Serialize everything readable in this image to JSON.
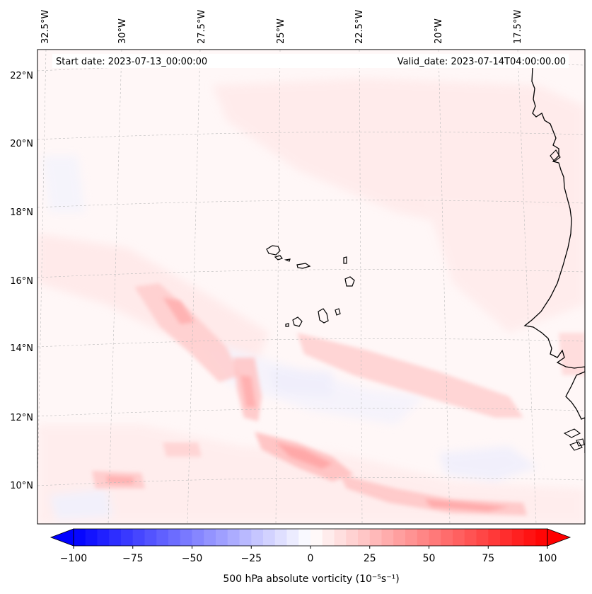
{
  "map": {
    "start_date": "Start date: 2023-07-13_00:00:00",
    "valid_date": "Valid_date: 2023-07-14T04:00:00.00",
    "lon_labels": [
      "32.5°W",
      "30°W",
      "27.5°W",
      "25°W",
      "22.5°W",
      "20°W",
      "17.5°W"
    ],
    "lat_labels": [
      "22°N",
      "20°N",
      "18°N",
      "16°N",
      "14°N",
      "12°N",
      "10°N"
    ],
    "field": "500 hPa absolute vorticity",
    "region": "Cabo Verde Islands and West African coast"
  },
  "colorbar": {
    "label": "500 hPa absolute vorticity (10⁻⁵s⁻¹)",
    "min": -100,
    "max": 100,
    "ticks": [
      "−100",
      "−75",
      "−50",
      "−25",
      "0",
      "25",
      "50",
      "75",
      "100"
    ],
    "colors": {
      "negative": "#0000ff",
      "zero": "#ffffff",
      "positive": "#ff0000"
    }
  },
  "colors": {
    "coastline": "#000000",
    "gridline": "#bbbbbb"
  }
}
